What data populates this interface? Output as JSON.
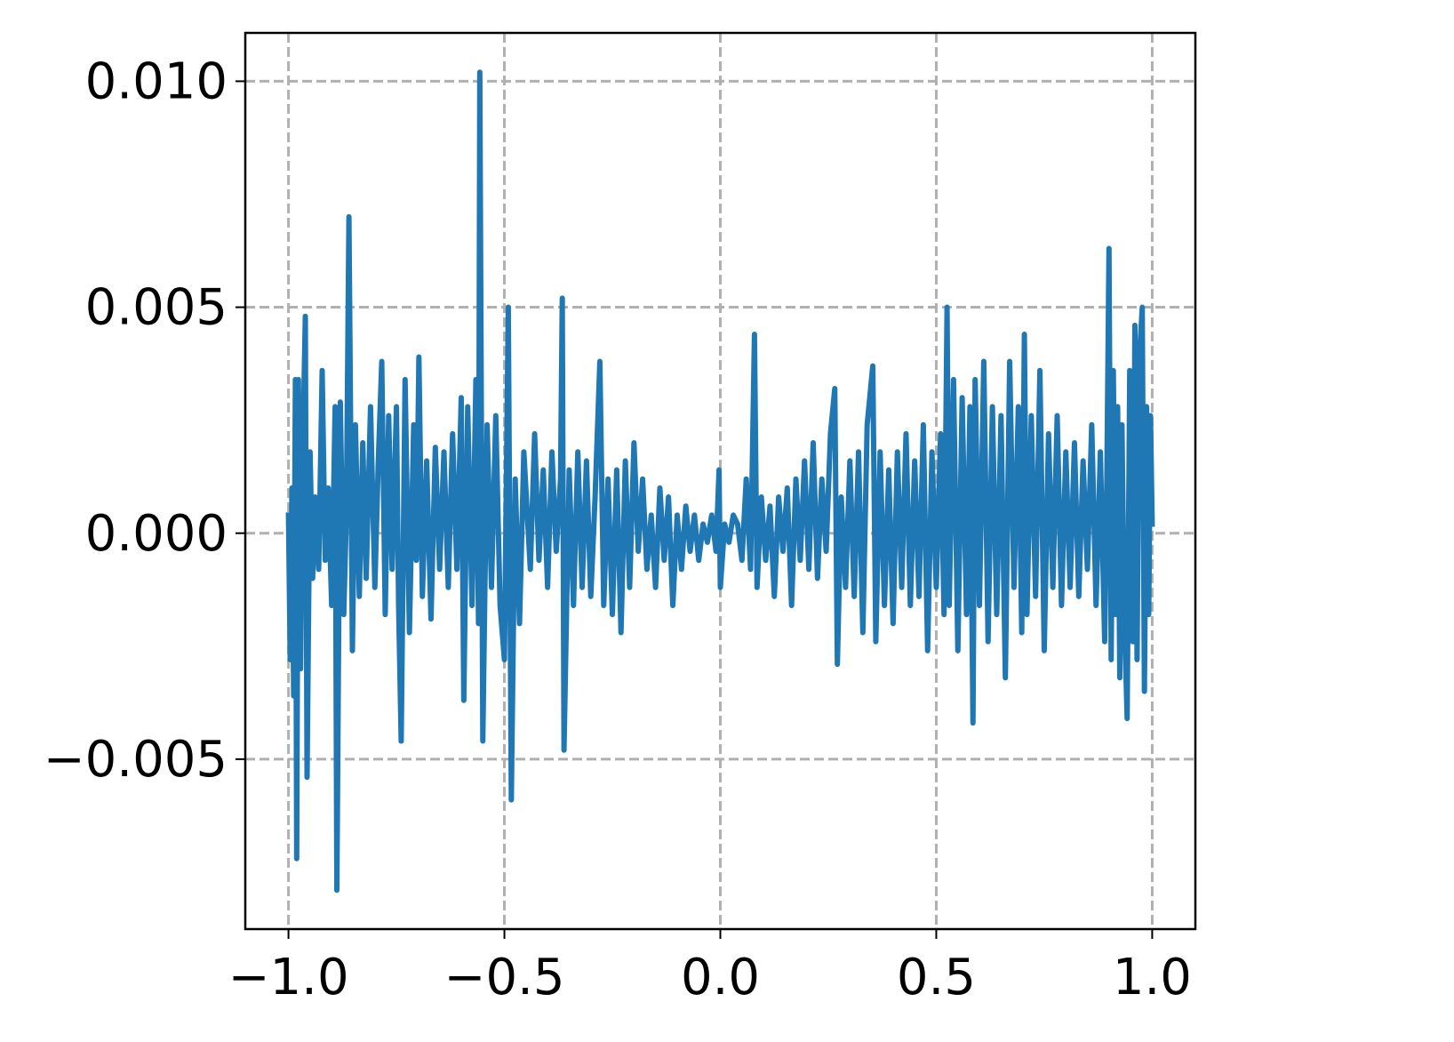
{
  "chart_data": {
    "type": "line",
    "color": "#1f77b4",
    "grid": true,
    "xlim": [
      -1.1,
      1.1
    ],
    "ylim": [
      -0.00876,
      0.01107
    ],
    "xticks": [
      {
        "value": -1.0,
        "label": "−1.0"
      },
      {
        "value": -0.5,
        "label": "−0.5"
      },
      {
        "value": 0.0,
        "label": "0.0"
      },
      {
        "value": 0.5,
        "label": "0.5"
      },
      {
        "value": 1.0,
        "label": "1.0"
      }
    ],
    "yticks": [
      {
        "value": -0.005,
        "label": "−0.005"
      },
      {
        "value": 0.0,
        "label": "0.000"
      },
      {
        "value": 0.005,
        "label": "0.005"
      },
      {
        "value": 0.01,
        "label": "0.010"
      }
    ],
    "x": [
      -1.0,
      -0.996,
      -0.992,
      -0.988,
      -0.984,
      -0.981,
      -0.977,
      -0.972,
      -0.968,
      -0.961,
      -0.957,
      -0.95,
      -0.944,
      -0.938,
      -0.93,
      -0.922,
      -0.915,
      -0.908,
      -0.9,
      -0.892,
      -0.888,
      -0.88,
      -0.872,
      -0.866,
      -0.86,
      -0.852,
      -0.845,
      -0.836,
      -0.828,
      -0.82,
      -0.81,
      -0.8,
      -0.792,
      -0.784,
      -0.776,
      -0.768,
      -0.76,
      -0.75,
      -0.745,
      -0.739,
      -0.73,
      -0.72,
      -0.71,
      -0.704,
      -0.698,
      -0.69,
      -0.68,
      -0.67,
      -0.66,
      -0.65,
      -0.64,
      -0.63,
      -0.62,
      -0.61,
      -0.6,
      -0.594,
      -0.585,
      -0.575,
      -0.566,
      -0.56,
      -0.557,
      -0.55,
      -0.54,
      -0.53,
      -0.52,
      -0.51,
      -0.5,
      -0.491,
      -0.484,
      -0.475,
      -0.465,
      -0.455,
      -0.44,
      -0.43,
      -0.42,
      -0.41,
      -0.4,
      -0.39,
      -0.38,
      -0.37,
      -0.366,
      -0.362,
      -0.35,
      -0.34,
      -0.33,
      -0.32,
      -0.31,
      -0.3,
      -0.29,
      -0.279,
      -0.27,
      -0.26,
      -0.25,
      -0.24,
      -0.23,
      -0.22,
      -0.21,
      -0.2,
      -0.19,
      -0.18,
      -0.17,
      -0.16,
      -0.15,
      -0.14,
      -0.13,
      -0.12,
      -0.11,
      -0.1,
      -0.09,
      -0.08,
      -0.07,
      -0.06,
      -0.05,
      -0.04,
      -0.03,
      -0.02,
      -0.01,
      -0.003,
      0.0,
      0.01,
      0.02,
      0.03,
      0.04,
      0.05,
      0.06,
      0.07,
      0.079,
      0.085,
      0.095,
      0.105,
      0.115,
      0.125,
      0.135,
      0.145,
      0.155,
      0.165,
      0.175,
      0.185,
      0.195,
      0.205,
      0.215,
      0.225,
      0.235,
      0.245,
      0.255,
      0.265,
      0.271,
      0.28,
      0.29,
      0.3,
      0.31,
      0.32,
      0.33,
      0.34,
      0.353,
      0.36,
      0.37,
      0.38,
      0.39,
      0.4,
      0.41,
      0.42,
      0.43,
      0.44,
      0.45,
      0.46,
      0.47,
      0.48,
      0.49,
      0.5,
      0.51,
      0.518,
      0.525,
      0.53,
      0.54,
      0.55,
      0.56,
      0.57,
      0.578,
      0.585,
      0.59,
      0.6,
      0.61,
      0.62,
      0.63,
      0.64,
      0.65,
      0.66,
      0.67,
      0.68,
      0.69,
      0.698,
      0.704,
      0.71,
      0.72,
      0.73,
      0.74,
      0.75,
      0.76,
      0.77,
      0.78,
      0.79,
      0.8,
      0.81,
      0.82,
      0.83,
      0.84,
      0.85,
      0.86,
      0.87,
      0.88,
      0.89,
      0.895,
      0.9,
      0.905,
      0.91,
      0.915,
      0.92,
      0.925,
      0.93,
      0.935,
      0.942,
      0.948,
      0.955,
      0.96,
      0.965,
      0.97,
      0.977,
      0.982,
      0.987,
      0.992,
      0.996,
      1.0
    ],
    "values": [
      0.0004,
      -0.0028,
      0.001,
      -0.0036,
      0.0034,
      -0.0072,
      0.0034,
      -0.003,
      0.0012,
      0.0048,
      -0.0054,
      0.0018,
      -0.001,
      0.0008,
      -0.0008,
      0.0036,
      -0.0006,
      0.001,
      -0.0016,
      0.0028,
      -0.0079,
      0.0029,
      -0.0018,
      0.0004,
      0.007,
      -0.0026,
      0.0024,
      -0.0014,
      0.002,
      -0.001,
      0.0028,
      -0.0012,
      0.0016,
      0.0038,
      -0.0018,
      0.0026,
      -0.0008,
      0.0028,
      -0.0016,
      -0.0046,
      0.0034,
      -0.0022,
      0.0024,
      -0.0006,
      0.0039,
      -0.0014,
      0.0016,
      -0.0019,
      0.0019,
      -0.0008,
      0.0018,
      -0.0012,
      0.0022,
      -0.0008,
      0.003,
      -0.0037,
      0.0028,
      -0.0016,
      0.0034,
      -0.002,
      0.0102,
      -0.0046,
      0.0024,
      -0.0012,
      0.0026,
      -0.0016,
      -0.0028,
      0.005,
      -0.0059,
      0.0012,
      -0.002,
      0.0018,
      -0.0008,
      0.0022,
      -0.0006,
      0.0014,
      -0.0012,
      0.0018,
      -0.0004,
      0.0012,
      0.0052,
      -0.0048,
      0.0014,
      -0.0016,
      0.0018,
      -0.0012,
      0.0016,
      -0.0014,
      0.0008,
      0.0038,
      -0.0016,
      0.0012,
      -0.0018,
      0.0014,
      -0.0022,
      0.0016,
      -0.0012,
      0.002,
      -0.0004,
      0.0012,
      -0.0008,
      0.0004,
      -0.0012,
      0.001,
      -0.0006,
      0.0008,
      -0.0016,
      0.0004,
      -0.0008,
      0.0006,
      -0.0004,
      0.0004,
      -0.0006,
      0.0002,
      -0.0002,
      0.0004,
      -0.0004,
      0.0014,
      -0.0012,
      0.0002,
      -0.0002,
      0.0004,
      0.0002,
      -0.0006,
      0.0012,
      -0.0008,
      0.0044,
      -0.0012,
      0.0008,
      -0.0006,
      0.0006,
      -0.0014,
      0.0008,
      -0.0004,
      0.001,
      -0.0016,
      0.0012,
      -0.0006,
      0.0016,
      -0.0008,
      0.002,
      -0.001,
      0.0012,
      -0.0004,
      0.0022,
      0.0032,
      -0.0029,
      0.0008,
      -0.0012,
      0.0016,
      -0.0014,
      0.0018,
      -0.0022,
      0.0024,
      0.0037,
      -0.0024,
      0.0018,
      -0.0016,
      0.0014,
      -0.002,
      0.0018,
      -0.0012,
      0.0022,
      -0.0016,
      0.0016,
      -0.0014,
      0.0024,
      -0.0026,
      0.0018,
      -0.0012,
      0.0022,
      -0.0018,
      0.005,
      -0.0016,
      0.0034,
      -0.0026,
      0.003,
      -0.0018,
      0.0028,
      -0.0042,
      0.0034,
      -0.0016,
      0.0038,
      -0.0024,
      0.0028,
      -0.0018,
      0.0026,
      -0.0032,
      0.0038,
      -0.0012,
      0.0028,
      -0.0022,
      0.0044,
      -0.0018,
      0.0026,
      -0.0014,
      0.0036,
      -0.0026,
      0.0022,
      -0.0012,
      0.0026,
      -0.0016,
      0.0018,
      -0.0012,
      0.002,
      -0.0014,
      0.0016,
      -0.0008,
      0.0024,
      -0.0016,
      0.0018,
      -0.0024,
      0.0012,
      0.0063,
      -0.0028,
      0.0036,
      -0.0018,
      0.0028,
      -0.0032,
      0.0024,
      -0.0016,
      -0.0041,
      0.0036,
      -0.0024,
      0.0046,
      -0.0028,
      0.0038,
      0.005,
      -0.0035,
      0.0028,
      -0.0018,
      0.0026,
      0.0002
    ]
  }
}
